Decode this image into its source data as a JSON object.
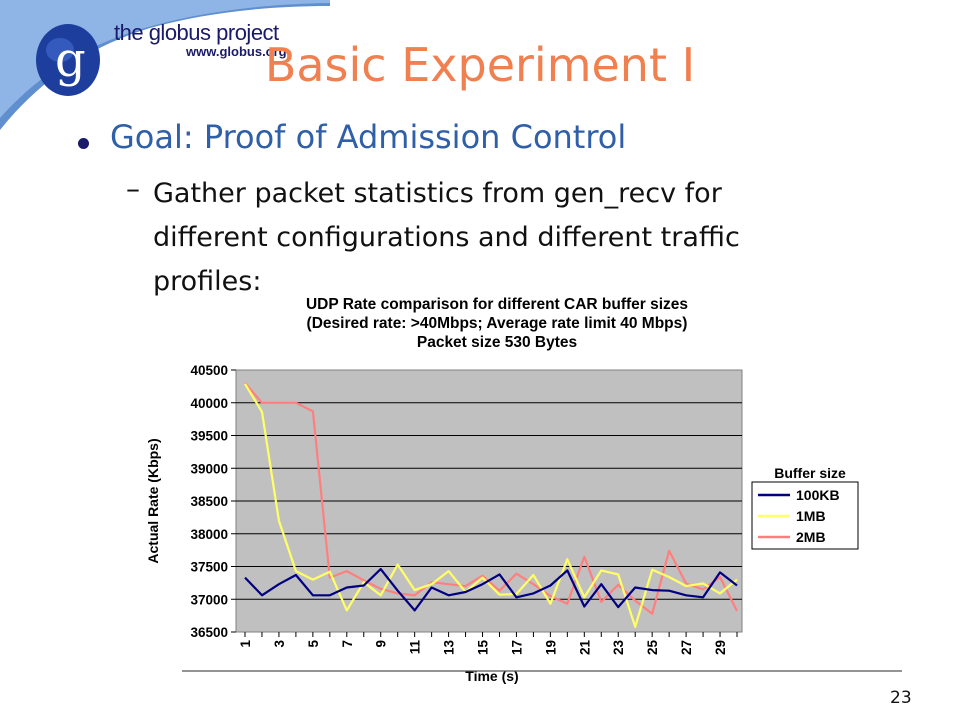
{
  "logo": {
    "name": "the globus project",
    "url": "www.globus.org",
    "icon": "globe-g-icon"
  },
  "slide": {
    "title": "Basic Experiment I",
    "bullet": "Goal: Proof of Admission Control",
    "sub_dash": "–",
    "sub_lines": [
      "Gather packet statistics from gen_recv for",
      "different configurations and different traffic",
      "profiles:"
    ],
    "page_number": "23"
  },
  "colors": {
    "title": "#f08050",
    "bullet": "#2f5fa8",
    "plot_bg": "#c0c0c0",
    "series_100KB": "#000080",
    "series_1MB": "#ffff66",
    "series_2MB": "#ff7f7f"
  },
  "chart_data": {
    "type": "line",
    "title_lines": [
      "UDP Rate comparison for different CAR buffer sizes",
      "(Desired rate: >40Mbps; Average rate limit 40 Mbps)",
      "Packet size 530 Bytes"
    ],
    "xlabel": "Time (s)",
    "ylabel": "Actual Rate (Kbps)",
    "ylim": [
      36500,
      40500
    ],
    "yticks": [
      "40500",
      "40000",
      "39500",
      "39000",
      "38500",
      "38000",
      "37500",
      "37000",
      "36500"
    ],
    "xtick_labels": [
      "1",
      "3",
      "5",
      "7",
      "9",
      "11",
      "13",
      "15",
      "17",
      "19",
      "21",
      "23",
      "25",
      "27",
      "29"
    ],
    "x": [
      1,
      2,
      3,
      4,
      5,
      6,
      7,
      8,
      9,
      10,
      11,
      12,
      13,
      14,
      15,
      16,
      17,
      18,
      19,
      20,
      21,
      22,
      23,
      24,
      25,
      26,
      27,
      28,
      29,
      30
    ],
    "grid": "horizontal",
    "legend_title": "Buffer size",
    "legend_position": "right",
    "series": [
      {
        "name": "100KB",
        "values": [
          37330,
          37060,
          37230,
          37370,
          37060,
          37060,
          37180,
          37210,
          37460,
          37130,
          36830,
          37180,
          37060,
          37110,
          37230,
          37380,
          37030,
          37090,
          37210,
          37440,
          36890,
          37230,
          36880,
          37180,
          37140,
          37130,
          37060,
          37030,
          37410,
          37210
        ]
      },
      {
        "name": "1MB",
        "values": [
          40290,
          39860,
          38200,
          37430,
          37300,
          37420,
          36830,
          37260,
          37060,
          37530,
          37140,
          37230,
          37430,
          37110,
          37330,
          37070,
          37080,
          37370,
          36930,
          37610,
          37030,
          37440,
          37380,
          36580,
          37450,
          37340,
          37200,
          37240,
          37090,
          37300
        ]
      },
      {
        "name": "2MB",
        "values": [
          40300,
          40000,
          40000,
          40000,
          39870,
          37330,
          37430,
          37290,
          37160,
          37090,
          37060,
          37260,
          37230,
          37200,
          37360,
          37130,
          37390,
          37230,
          37050,
          36930,
          37650,
          36960,
          37220,
          36980,
          36780,
          37740,
          37240,
          37150,
          37340,
          36820
        ]
      }
    ]
  }
}
